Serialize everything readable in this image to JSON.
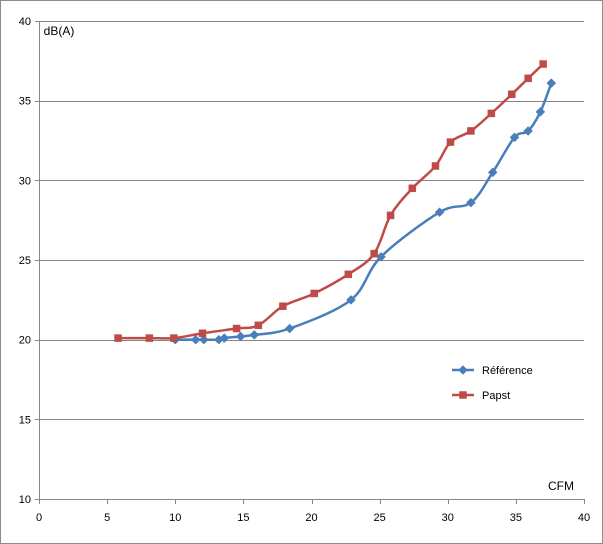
{
  "chart_data": {
    "type": "line",
    "xlabel": "CFM",
    "ylabel": "dB(A)",
    "xlim": [
      0,
      40
    ],
    "ylim": [
      10,
      40
    ],
    "x_ticks": [
      0,
      5,
      10,
      15,
      20,
      25,
      30,
      35,
      40
    ],
    "y_ticks": [
      10,
      15,
      20,
      25,
      30,
      35,
      40
    ],
    "grid": "horizontal",
    "legend_position": "right",
    "smooth": true,
    "series": [
      {
        "name": "Référence",
        "color": "#4a7ebb",
        "marker": "diamond",
        "points": [
          [
            10.0,
            20.0
          ],
          [
            11.5,
            20.0
          ],
          [
            12.1,
            20.0
          ],
          [
            13.2,
            20.0
          ],
          [
            13.6,
            20.1
          ],
          [
            14.8,
            20.2
          ],
          [
            15.8,
            20.3
          ],
          [
            18.4,
            20.7
          ],
          [
            22.9,
            22.5
          ],
          [
            25.1,
            25.2
          ],
          [
            29.4,
            28.0
          ],
          [
            31.7,
            28.6
          ],
          [
            33.3,
            30.5
          ],
          [
            34.9,
            32.7
          ],
          [
            35.9,
            33.1
          ],
          [
            36.8,
            34.3
          ],
          [
            37.6,
            36.1
          ]
        ]
      },
      {
        "name": "Papst",
        "color": "#be4b48",
        "marker": "square",
        "points": [
          [
            5.8,
            20.1
          ],
          [
            8.1,
            20.1
          ],
          [
            9.9,
            20.1
          ],
          [
            12.0,
            20.4
          ],
          [
            14.5,
            20.7
          ],
          [
            16.1,
            20.9
          ],
          [
            17.9,
            22.1
          ],
          [
            20.2,
            22.9
          ],
          [
            22.7,
            24.1
          ],
          [
            24.6,
            25.4
          ],
          [
            25.8,
            27.8
          ],
          [
            27.4,
            29.5
          ],
          [
            29.1,
            30.9
          ],
          [
            30.2,
            32.4
          ],
          [
            31.7,
            33.1
          ],
          [
            33.2,
            34.2
          ],
          [
            34.7,
            35.4
          ],
          [
            35.9,
            36.4
          ],
          [
            37.0,
            37.3
          ]
        ]
      }
    ]
  }
}
